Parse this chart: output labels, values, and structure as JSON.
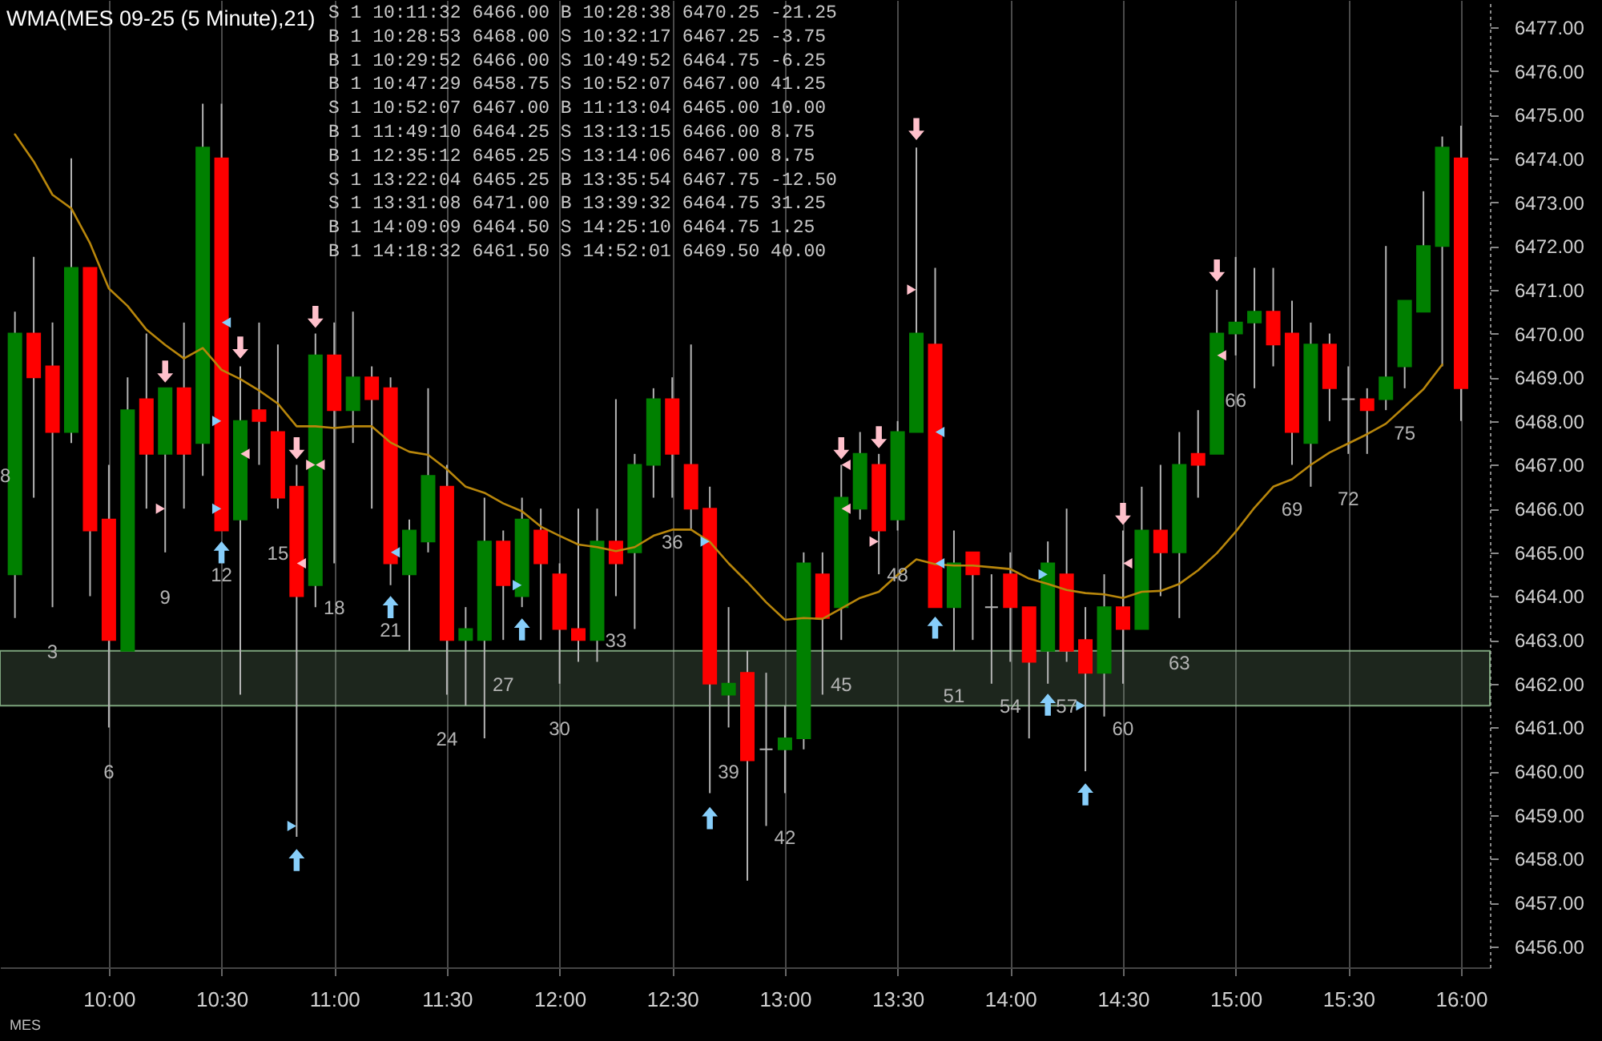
{
  "chart_data": {
    "type": "candlestick",
    "title": "WMA(MES 09-25 (5 Minute),21)",
    "x": [
      9.5833,
      9.6667,
      9.75,
      9.8333,
      9.9167,
      10,
      10.0833,
      10.1667,
      10.25,
      10.3333,
      10.4167,
      10.5,
      10.5833,
      10.6667,
      10.75,
      10.8333,
      10.9167,
      11,
      11.0833,
      11.1667,
      11.25,
      11.3333,
      11.4167,
      11.5,
      11.5833,
      11.6667,
      11.75,
      11.8333,
      11.9167,
      12,
      12.0833,
      12.1667,
      12.25,
      12.3333,
      12.4167,
      12.5,
      12.5833,
      12.6667,
      12.75,
      12.8333,
      12.9167,
      13,
      13.0833,
      13.1667,
      13.25,
      13.3333,
      13.4167,
      13.5,
      13.5833,
      13.6667,
      13.75,
      13.8333,
      13.9167,
      14,
      14.0833,
      14.1667,
      14.25,
      14.3333,
      14.4167,
      14.5,
      14.5833,
      14.6667,
      14.75,
      14.8333,
      14.9167,
      15,
      15.0833,
      15.1667,
      15.25,
      15.3333,
      15.4167,
      15.5,
      15.5833,
      15.6667,
      15.75,
      15.8333,
      15.9167,
      16
    ],
    "ohlc": [
      [
        6464.5,
        6470.5,
        6463.5,
        6470.0
      ],
      [
        6470.0,
        6471.75,
        6466.25,
        6469.0
      ],
      [
        6469.25,
        6470.25,
        6463.75,
        6467.75
      ],
      [
        6467.75,
        6474.0,
        6467.5,
        6471.5
      ],
      [
        6471.5,
        6471.5,
        6464.0,
        6465.5
      ],
      [
        6465.75,
        6467.0,
        6461.0,
        6463.0
      ],
      [
        6462.75,
        6469.0,
        6462.75,
        6468.25
      ],
      [
        6468.5,
        6470.0,
        6466.0,
        6467.25
      ],
      [
        6467.25,
        6468.75,
        6465.0,
        6468.75
      ],
      [
        6468.75,
        6470.25,
        6466.0,
        6467.25
      ],
      [
        6467.5,
        6475.25,
        6466.75,
        6474.25
      ],
      [
        6474.0,
        6475.25,
        6465.5,
        6465.5
      ],
      [
        6465.75,
        6469.25,
        6461.75,
        6468.0
      ],
      [
        6468.25,
        6470.25,
        6467.0,
        6468.0
      ],
      [
        6467.75,
        6469.75,
        6466.0,
        6466.25
      ],
      [
        6466.5,
        6467.0,
        6458.5,
        6464.0
      ],
      [
        6464.25,
        6470.0,
        6463.75,
        6469.5
      ],
      [
        6469.5,
        6470.25,
        6464.75,
        6468.25
      ],
      [
        6468.25,
        6470.5,
        6467.5,
        6469.0
      ],
      [
        6469.0,
        6469.25,
        6466.0,
        6468.5
      ],
      [
        6468.75,
        6469.0,
        6464.25,
        6464.75
      ],
      [
        6464.5,
        6465.75,
        6462.75,
        6465.5
      ],
      [
        6465.25,
        6468.75,
        6465.0,
        6466.75
      ],
      [
        6466.5,
        6467.0,
        6461.75,
        6463.0
      ],
      [
        6463.0,
        6463.75,
        6461.5,
        6463.25
      ],
      [
        6463.0,
        6466.25,
        6460.75,
        6465.25
      ],
      [
        6465.25,
        6465.5,
        6463.0,
        6464.25
      ],
      [
        6464.0,
        6466.25,
        6463.75,
        6465.75
      ],
      [
        6465.5,
        6466.0,
        6463.0,
        6464.75
      ],
      [
        6464.5,
        6464.75,
        6462.0,
        6463.25
      ],
      [
        6463.25,
        6466.0,
        6462.5,
        6463.0
      ],
      [
        6463.0,
        6466.0,
        6462.5,
        6465.25
      ],
      [
        6465.25,
        6468.5,
        6464.0,
        6464.75
      ],
      [
        6465.0,
        6467.25,
        6463.25,
        6467.0
      ],
      [
        6467.0,
        6468.75,
        6466.25,
        6468.5
      ],
      [
        6468.5,
        6469.0,
        6466.25,
        6467.25
      ],
      [
        6467.0,
        6469.75,
        6465.5,
        6466.0
      ],
      [
        6466.0,
        6466.5,
        6459.5,
        6462.0
      ],
      [
        6461.75,
        6463.75,
        6461.0,
        6462.0
      ],
      [
        6462.25,
        6462.75,
        6457.5,
        6460.25
      ],
      [
        6460.5,
        6462.25,
        6458.75,
        6460.5
      ],
      [
        6460.5,
        6461.5,
        6459.5,
        6460.75
      ],
      [
        6460.75,
        6465.0,
        6460.5,
        6464.75
      ],
      [
        6464.5,
        6465.0,
        6461.75,
        6463.5
      ],
      [
        6463.75,
        6467.0,
        6463.0,
        6466.25
      ],
      [
        6466.0,
        6467.75,
        6465.75,
        6467.25
      ],
      [
        6467.0,
        6467.25,
        6464.5,
        6465.5
      ],
      [
        6465.75,
        6468.0,
        6465.5,
        6467.75
      ],
      [
        6467.75,
        6474.25,
        6467.75,
        6470.0
      ],
      [
        6469.75,
        6471.5,
        6463.75,
        6463.75
      ],
      [
        6463.75,
        6465.5,
        6462.75,
        6464.75
      ],
      [
        6465.0,
        6465.0,
        6463.0,
        6464.5
      ],
      [
        6463.75,
        6464.5,
        6462.0,
        6463.75
      ],
      [
        6464.5,
        6465.0,
        6462.5,
        6463.75
      ],
      [
        6463.75,
        6463.75,
        6460.75,
        6462.5
      ],
      [
        6462.75,
        6465.25,
        6462.0,
        6464.75
      ],
      [
        6464.5,
        6466.0,
        6462.5,
        6462.75
      ],
      [
        6463.0,
        6463.75,
        6460.0,
        6462.25
      ],
      [
        6462.25,
        6464.5,
        6461.25,
        6463.75
      ],
      [
        6463.75,
        6465.5,
        6462.0,
        6463.25
      ],
      [
        6463.25,
        6466.5,
        6463.25,
        6465.5
      ],
      [
        6465.5,
        6467.0,
        6464.0,
        6465.0
      ],
      [
        6465.0,
        6467.75,
        6463.5,
        6467.0
      ],
      [
        6467.25,
        6468.25,
        6466.25,
        6467.0
      ],
      [
        6467.25,
        6471.0,
        6467.25,
        6470.0
      ],
      [
        6470.0,
        6471.75,
        6469.5,
        6470.25
      ],
      [
        6470.25,
        6471.5,
        6468.75,
        6470.5
      ],
      [
        6470.5,
        6471.5,
        6469.25,
        6469.75
      ],
      [
        6470.0,
        6470.75,
        6467.0,
        6467.75
      ],
      [
        6467.5,
        6470.25,
        6466.5,
        6469.75
      ],
      [
        6469.75,
        6470.0,
        6468.0,
        6468.75
      ],
      [
        6468.5,
        6469.25,
        6467.25,
        6468.5
      ],
      [
        6468.5,
        6468.75,
        6467.25,
        6468.25
      ],
      [
        6468.5,
        6472.0,
        6468.25,
        6469.0
      ],
      [
        6469.25,
        6470.75,
        6468.75,
        6470.75
      ],
      [
        6470.5,
        6473.25,
        6470.5,
        6472.0
      ],
      [
        6472.0,
        6474.5,
        6469.25,
        6474.25
      ],
      [
        6474.0,
        6474.75,
        6468.0,
        6468.75
      ]
    ],
    "colors": [
      "#008000",
      "#ff0000",
      "#ff0000",
      "#008000",
      "#ff0000",
      "#ff0000",
      "#008000",
      "#ff0000",
      "#008000",
      "#ff0000",
      "#008000",
      "#ff0000",
      "#008000",
      "#ff0000",
      "#ff0000",
      "#ff0000",
      "#008000",
      "#ff0000",
      "#008000",
      "#ff0000",
      "#ff0000",
      "#008000",
      "#008000",
      "#ff0000",
      "#008000",
      "#008000",
      "#ff0000",
      "#008000",
      "#ff0000",
      "#ff0000",
      "#ff0000",
      "#008000",
      "#ff0000",
      "#008000",
      "#008000",
      "#ff0000",
      "#ff0000",
      "#ff0000",
      "#008000",
      "#ff0000",
      "#b4b4b4",
      "#008000",
      "#008000",
      "#ff0000",
      "#008000",
      "#008000",
      "#ff0000",
      "#008000",
      "#008000",
      "#ff0000",
      "#008000",
      "#ff0000",
      "#b4b4b4",
      "#ff0000",
      "#ff0000",
      "#008000",
      "#ff0000",
      "#ff0000",
      "#008000",
      "#ff0000",
      "#008000",
      "#ff0000",
      "#008000",
      "#ff0000",
      "#008000",
      "#008000",
      "#008000",
      "#ff0000",
      "#ff0000",
      "#008000",
      "#ff0000",
      "#b4b4b4",
      "#ff0000",
      "#008000",
      "#008000",
      "#008000",
      "#008000",
      "#ff0000"
    ],
    "series": [
      {
        "type": "line",
        "color": "#b8860b",
        "values": [
          6474.55,
          6473.93,
          6473.17,
          6472.86,
          6472.06,
          6471.03,
          6470.63,
          6470.09,
          6469.74,
          6469.43,
          6469.67,
          6469.17,
          6468.96,
          6468.7,
          6468.4,
          6467.88,
          6467.88,
          6467.84,
          6467.88,
          6467.88,
          6467.51,
          6467.3,
          6467.23,
          6466.9,
          6466.5,
          6466.36,
          6466.12,
          6465.94,
          6465.59,
          6465.38,
          6465.18,
          6465.12,
          6465.03,
          6465.12,
          6465.38,
          6465.52,
          6465.52,
          6465.24,
          6464.75,
          6464.32,
          6463.86,
          6463.46,
          6463.5,
          6463.48,
          6463.72,
          6463.96,
          6464.1,
          6464.49,
          6464.84,
          6464.73,
          6464.7,
          6464.7,
          6464.66,
          6464.62,
          6464.4,
          6464.28,
          6464.14,
          6464.07,
          6464.04,
          6463.96,
          6464.1,
          6464.12,
          6464.28,
          6464.59,
          6464.98,
          6465.47,
          6466.02,
          6466.5,
          6466.67,
          6467.0,
          6467.28,
          6467.49,
          6467.7,
          6467.94,
          6468.33,
          6468.73,
          6469.29,
          null
        ]
      },
      {
        "type": "scatter",
        "color": "#87cefa",
        "marker": "triangle",
        "x": [
          10.5,
          10.8333,
          11.25,
          11.8333,
          12.6667,
          13.6667,
          14.1667,
          14.3333
        ],
        "values": [
          6465.0,
          6457.97,
          6463.75,
          6463.24,
          6458.93,
          6463.28,
          6461.52,
          6459.47
        ]
      },
      {
        "type": "scatter",
        "color": "#ffc0cb",
        "marker": "triangle",
        "x": [
          10.25,
          10.5833,
          10.8333,
          10.9167,
          13.25,
          13.4167,
          13.5833,
          14.5,
          14.9167
        ],
        "values": [
          6469.13,
          6469.68,
          6467.38,
          6470.38,
          6467.38,
          6467.63,
          6474.67,
          6465.88,
          6471.44
        ]
      },
      {
        "type": "scatter",
        "color": "#87cefa",
        "marker": "triangle",
        "x": [
          10.5,
          10.5,
          10.8333,
          11.8333,
          12.6667,
          14.1667,
          14.3333
        ],
        "values": [
          6468.0,
          6466.0,
          6458.75,
          6464.25,
          6465.25,
          6464.5,
          6461.5
        ]
      },
      {
        "type": "scatter",
        "color": "#ffc0cb",
        "marker": "triangle",
        "x": [
          10.25,
          10.9167,
          13.4167,
          13.5833
        ],
        "values": [
          6466.0,
          6467.0,
          6465.25,
          6471.0
        ]
      },
      {
        "type": "scatter",
        "color": "#87cefa",
        "marker": "triangle",
        "x": [
          10.5,
          11.25,
          13.6667,
          13.6667
        ],
        "values": [
          6470.25,
          6465.0,
          6467.75,
          6464.75
        ]
      },
      {
        "type": "scatter",
        "color": "#ffc0cb",
        "marker": "triangle",
        "x": [
          10.5833,
          10.8333,
          10.9167,
          13.25,
          13.25,
          14.5,
          14.9167
        ],
        "values": [
          6467.25,
          6464.75,
          6467.0,
          6466.0,
          6467.0,
          6464.75,
          6469.5
        ]
      }
    ],
    "xlim": [
      9.517,
      16.128
    ],
    "xticks": [
      {
        "value": 10,
        "label": "10:00"
      },
      {
        "value": 10.5,
        "label": "10:30"
      },
      {
        "value": 11,
        "label": "11:00"
      },
      {
        "value": 11.5,
        "label": "11:30"
      },
      {
        "value": 12,
        "label": "12:00"
      },
      {
        "value": 12.5,
        "label": "12:30"
      },
      {
        "value": 13,
        "label": "13:00"
      },
      {
        "value": 13.5,
        "label": "13:30"
      },
      {
        "value": 14,
        "label": "14:00"
      },
      {
        "value": 14.5,
        "label": "14:30"
      },
      {
        "value": 15,
        "label": "15:00"
      },
      {
        "value": 15.5,
        "label": "15:30"
      },
      {
        "value": 16,
        "label": "16:00"
      }
    ],
    "ylim": [
      6455.52,
      6477.62
    ],
    "yticks": [
      {
        "value": 6456,
        "label": "6456.00"
      },
      {
        "value": 6457,
        "label": "6457.00"
      },
      {
        "value": 6458,
        "label": "6458.00"
      },
      {
        "value": 6459,
        "label": "6459.00"
      },
      {
        "value": 6460,
        "label": "6460.00"
      },
      {
        "value": 6461,
        "label": "6461.00"
      },
      {
        "value": 6462,
        "label": "6462.00"
      },
      {
        "value": 6463,
        "label": "6463.00"
      },
      {
        "value": 6464,
        "label": "6464.00"
      },
      {
        "value": 6465,
        "label": "6465.00"
      },
      {
        "value": 6466,
        "label": "6466.00"
      },
      {
        "value": 6467,
        "label": "6467.00"
      },
      {
        "value": 6468,
        "label": "6468.00"
      },
      {
        "value": 6469,
        "label": "6469.00"
      },
      {
        "value": 6470,
        "label": "6470.00"
      },
      {
        "value": 6471,
        "label": "6471.00"
      },
      {
        "value": 6472,
        "label": "6472.00"
      },
      {
        "value": 6473,
        "label": "6473.00"
      },
      {
        "value": 6474,
        "label": "6474.00"
      },
      {
        "value": 6475,
        "label": "6475.00"
      },
      {
        "value": 6476,
        "label": "6476.00"
      },
      {
        "value": 6477,
        "label": "6477.00"
      }
    ],
    "grid": "x",
    "bands": [
      {
        "axis": "y",
        "from": 6461.5,
        "to": 6462.75,
        "color": "#8fbc8f"
      }
    ],
    "annotations": [
      "S 1 10:11:32 6466.00 B 10:28:38 6470.25 -21.25",
      "B 1 10:28:53 6468.00 S 10:32:17 6467.25 -3.75",
      "B 1 10:29:52 6466.00 S 10:49:52 6464.75 -6.25",
      "B 1 10:47:29 6458.75 S 10:52:07 6467.00 41.25",
      "S 1 10:52:07 6467.00 B 11:13:04 6465.00 10.00",
      "B 1 11:49:10 6464.25 S 13:13:15 6466.00 8.75",
      "B 1 12:35:12 6465.25 S 13:14:06 6467.00 8.75",
      "S 1 13:22:04 6465.25 B 13:35:54 6467.75 -12.50",
      "S 1 13:31:08 6471.00 B 13:39:32 6464.75 31.25",
      "B 1 14:09:09 6464.50 S 14:25:10 6464.75 1.25",
      "B 1 14:18:32 6461.50 S 14:52:01 6469.50 40.00",
      "MES",
      "8",
      {
        "text": "3",
        "x": 9.75,
        "y": 6463.75
      },
      {
        "text": "6",
        "x": 10,
        "y": 6461.0
      },
      {
        "text": "9",
        "x": 10.25,
        "y": 6465.0
      },
      {
        "text": "12",
        "x": 10.5,
        "y": 6465.5
      },
      {
        "text": "15",
        "x": 10.75,
        "y": 6466.0
      },
      {
        "text": "18",
        "x": 11,
        "y": 6464.75
      },
      {
        "text": "21",
        "x": 11.25,
        "y": 6464.25
      },
      {
        "text": "24",
        "x": 11.5,
        "y": 6461.75
      },
      {
        "text": "27",
        "x": 11.75,
        "y": 6463.0
      },
      {
        "text": "30",
        "x": 12,
        "y": 6462.0
      },
      {
        "text": "33",
        "x": 12.25,
        "y": 6464.0
      },
      {
        "text": "36",
        "x": 12.5,
        "y": 6466.25
      },
      {
        "text": "39",
        "x": 12.75,
        "y": 6461.0
      },
      {
        "text": "42",
        "x": 13,
        "y": 6459.5
      },
      {
        "text": "45",
        "x": 13.25,
        "y": 6463.0
      },
      {
        "text": "48",
        "x": 13.5,
        "y": 6465.5
      },
      {
        "text": "51",
        "x": 13.75,
        "y": 6462.75
      },
      {
        "text": "54",
        "x": 14,
        "y": 6462.5
      },
      {
        "text": "57",
        "x": 14.25,
        "y": 6462.5
      },
      {
        "text": "60",
        "x": 14.5,
        "y": 6462.0
      },
      {
        "text": "63",
        "x": 14.75,
        "y": 6463.5
      },
      {
        "text": "66",
        "x": 15,
        "y": 6469.5
      },
      {
        "text": "69",
        "x": 15.25,
        "y": 6467.0
      },
      {
        "text": "72",
        "x": 15.5,
        "y": 6467.25
      },
      {
        "text": "75",
        "x": 15.75,
        "y": 6468.75
      }
    ]
  }
}
